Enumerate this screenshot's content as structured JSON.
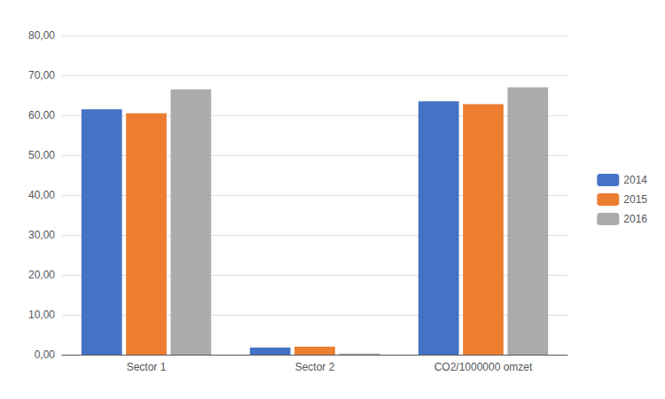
{
  "chart_data": {
    "type": "bar",
    "categories": [
      "Sector 1",
      "Sector 2",
      "CO2/1000000 omzet"
    ],
    "series": [
      {
        "name": "2014",
        "color": "#4472C4",
        "values": [
          61.5,
          1.8,
          63.5
        ]
      },
      {
        "name": "2015",
        "color": "#ED7D31",
        "values": [
          60.5,
          2.0,
          62.8
        ]
      },
      {
        "name": "2016",
        "color": "#ABABAB",
        "values": [
          66.5,
          0.3,
          67.0
        ]
      }
    ],
    "ylim": [
      0,
      80
    ],
    "yticks": [
      {
        "value": 0,
        "label": "0,00"
      },
      {
        "value": 10,
        "label": "10,00"
      },
      {
        "value": 20,
        "label": "20,00"
      },
      {
        "value": 30,
        "label": "30,00"
      },
      {
        "value": 40,
        "label": "40,00"
      },
      {
        "value": 50,
        "label": "50,00"
      },
      {
        "value": 60,
        "label": "60,00"
      },
      {
        "value": 70,
        "label": "70,00"
      },
      {
        "value": 80,
        "label": "80,00"
      }
    ],
    "grid": true,
    "legend": "right"
  }
}
